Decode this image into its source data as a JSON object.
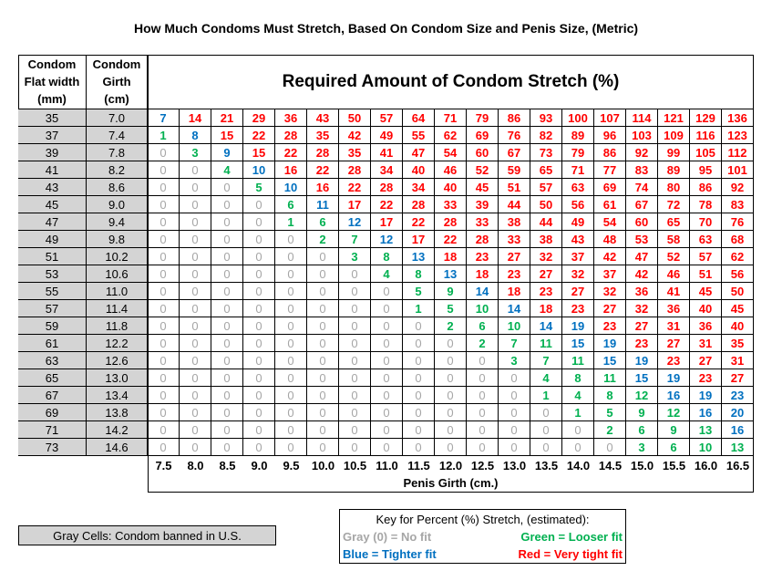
{
  "title": "How Much Condoms Must Stretch, Based On Condom Size and Penis Size, (Metric)",
  "table": {
    "corner": [
      "Condom",
      "Flat width",
      "(mm)"
    ],
    "girth_header": [
      "Condom",
      "Girth",
      "(cm)"
    ],
    "header": "Required Amount of Condom Stretch (%)",
    "columns": [
      "7.5",
      "8.0",
      "8.5",
      "9.0",
      "9.5",
      "10.0",
      "10.5",
      "11.0",
      "11.5",
      "12.0",
      "12.5",
      "13.0",
      "13.5",
      "14.0",
      "14.5",
      "15.0",
      "15.5",
      "16.0",
      "16.5"
    ],
    "column_title": "Penis Girth (cm.)",
    "palette": {
      "0": "#a6a6a6",
      "G": "#00b050",
      "B": "#0070c0",
      "R": "#ff0000"
    },
    "rows": [
      {
        "width": "35",
        "girth": "7.0",
        "values": [
          7,
          14,
          21,
          29,
          36,
          43,
          50,
          57,
          64,
          71,
          79,
          86,
          93,
          100,
          107,
          114,
          121,
          129,
          136
        ],
        "fit": "BRRRRRRRRRRRRRRRRRR"
      },
      {
        "width": "37",
        "girth": "7.4",
        "values": [
          1,
          8,
          15,
          22,
          28,
          35,
          42,
          49,
          55,
          62,
          69,
          76,
          82,
          89,
          96,
          103,
          109,
          116,
          123
        ],
        "fit": "GBRRRRRRRRRRRRRRRRR"
      },
      {
        "width": "39",
        "girth": "7.8",
        "values": [
          0,
          3,
          9,
          15,
          22,
          28,
          35,
          41,
          47,
          54,
          60,
          67,
          73,
          79,
          86,
          92,
          99,
          105,
          112
        ],
        "fit": "0GBRRRRRRRRRRRRRRRR"
      },
      {
        "width": "41",
        "girth": "8.2",
        "values": [
          0,
          0,
          4,
          10,
          16,
          22,
          28,
          34,
          40,
          46,
          52,
          59,
          65,
          71,
          77,
          83,
          89,
          95,
          101
        ],
        "fit": "00GBRRRRRRRRRRRRRRR"
      },
      {
        "width": "43",
        "girth": "8.6",
        "values": [
          0,
          0,
          0,
          5,
          10,
          16,
          22,
          28,
          34,
          40,
          45,
          51,
          57,
          63,
          69,
          74,
          80,
          86,
          92
        ],
        "fit": "000GBRRRRRRRRRRRRRR"
      },
      {
        "width": "45",
        "girth": "9.0",
        "values": [
          0,
          0,
          0,
          0,
          6,
          11,
          17,
          22,
          28,
          33,
          39,
          44,
          50,
          56,
          61,
          67,
          72,
          78,
          83
        ],
        "fit": "0000GBRRRRRRRRRRRRR"
      },
      {
        "width": "47",
        "girth": "9.4",
        "values": [
          0,
          0,
          0,
          0,
          1,
          6,
          12,
          17,
          22,
          28,
          33,
          38,
          44,
          49,
          54,
          60,
          65,
          70,
          76
        ],
        "fit": "0000GGBRRRRRRRRRRRR"
      },
      {
        "width": "49",
        "girth": "9.8",
        "values": [
          0,
          0,
          0,
          0,
          0,
          2,
          7,
          12,
          17,
          22,
          28,
          33,
          38,
          43,
          48,
          53,
          58,
          63,
          68
        ],
        "fit": "00000GGBRRRRRRRRRRR"
      },
      {
        "width": "51",
        "girth": "10.2",
        "values": [
          0,
          0,
          0,
          0,
          0,
          0,
          3,
          8,
          13,
          18,
          23,
          27,
          32,
          37,
          42,
          47,
          52,
          57,
          62
        ],
        "fit": "000000GGBRRRRRRRRRR"
      },
      {
        "width": "53",
        "girth": "10.6",
        "values": [
          0,
          0,
          0,
          0,
          0,
          0,
          0,
          4,
          8,
          13,
          18,
          23,
          27,
          32,
          37,
          42,
          46,
          51,
          56
        ],
        "fit": "0000000GGBRRRRRRRRR"
      },
      {
        "width": "55",
        "girth": "11.0",
        "values": [
          0,
          0,
          0,
          0,
          0,
          0,
          0,
          0,
          5,
          9,
          14,
          18,
          23,
          27,
          32,
          36,
          41,
          45,
          50
        ],
        "fit": "00000000GGBRRRRRRRR"
      },
      {
        "width": "57",
        "girth": "11.4",
        "values": [
          0,
          0,
          0,
          0,
          0,
          0,
          0,
          0,
          1,
          5,
          10,
          14,
          18,
          23,
          27,
          32,
          36,
          40,
          45
        ],
        "fit": "00000000GGGBRRRRRRR"
      },
      {
        "width": "59",
        "girth": "11.8",
        "values": [
          0,
          0,
          0,
          0,
          0,
          0,
          0,
          0,
          0,
          2,
          6,
          10,
          14,
          19,
          23,
          27,
          31,
          36,
          40
        ],
        "fit": "000000000GGGBBRRRRR"
      },
      {
        "width": "61",
        "girth": "12.2",
        "values": [
          0,
          0,
          0,
          0,
          0,
          0,
          0,
          0,
          0,
          0,
          2,
          7,
          11,
          15,
          19,
          23,
          27,
          31,
          35
        ],
        "fit": "0000000000GGGBBRRRR"
      },
      {
        "width": "63",
        "girth": "12.6",
        "values": [
          0,
          0,
          0,
          0,
          0,
          0,
          0,
          0,
          0,
          0,
          0,
          3,
          7,
          11,
          15,
          19,
          23,
          27,
          31
        ],
        "fit": "00000000000GGGBBRRR"
      },
      {
        "width": "65",
        "girth": "13.0",
        "values": [
          0,
          0,
          0,
          0,
          0,
          0,
          0,
          0,
          0,
          0,
          0,
          0,
          4,
          8,
          11,
          15,
          19,
          23,
          27
        ],
        "fit": "000000000000GGGBBRR"
      },
      {
        "width": "67",
        "girth": "13.4",
        "values": [
          0,
          0,
          0,
          0,
          0,
          0,
          0,
          0,
          0,
          0,
          0,
          0,
          1,
          4,
          8,
          12,
          16,
          19,
          23
        ],
        "fit": "000000000000GGGGBBB"
      },
      {
        "width": "69",
        "girth": "13.8",
        "values": [
          0,
          0,
          0,
          0,
          0,
          0,
          0,
          0,
          0,
          0,
          0,
          0,
          0,
          1,
          5,
          9,
          12,
          16,
          20
        ],
        "fit": "0000000000000GGGGBB"
      },
      {
        "width": "71",
        "girth": "14.2",
        "values": [
          0,
          0,
          0,
          0,
          0,
          0,
          0,
          0,
          0,
          0,
          0,
          0,
          0,
          0,
          2,
          6,
          9,
          13,
          16
        ],
        "fit": "00000000000000GGGGB"
      },
      {
        "width": "73",
        "girth": "14.6",
        "values": [
          0,
          0,
          0,
          0,
          0,
          0,
          0,
          0,
          0,
          0,
          0,
          0,
          0,
          0,
          0,
          3,
          6,
          10,
          13
        ],
        "fit": "000000000000000GGGG"
      }
    ]
  },
  "note": "Gray Cells: Condom banned in U.S.",
  "key": {
    "title": "Key for Percent (%) Stretch, (estimated):",
    "items": [
      {
        "text": "Gray (0) = No fit",
        "color": "#a6a6a6"
      },
      {
        "text": "Green = Looser fit",
        "color": "#00b050"
      },
      {
        "text": "Blue = Tighter fit",
        "color": "#0070c0"
      },
      {
        "text": "Red = Very tight fit",
        "color": "#ff0000"
      }
    ]
  }
}
